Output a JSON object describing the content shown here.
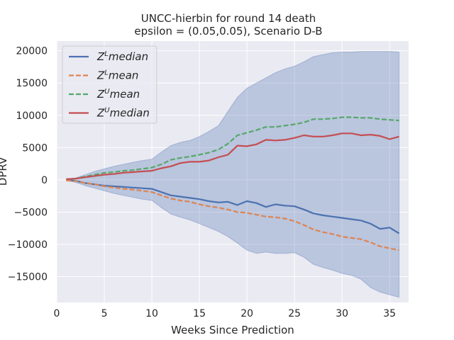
{
  "chart_data": {
    "type": "line",
    "title": "UNCC-hierbin for round 14 death",
    "subtitle": "epsilon = (0.05,0.05), Scenario D-B",
    "xlabel": "Weeks Since Prediction",
    "ylabel": "DPRV",
    "xlim": [
      0,
      37
    ],
    "ylim": [
      -19000,
      21500
    ],
    "xticks": [
      0,
      5,
      10,
      15,
      20,
      25,
      30,
      35
    ],
    "yticks": [
      -15000,
      -10000,
      -5000,
      0,
      5000,
      10000,
      15000,
      20000
    ],
    "grid": true,
    "background": "#eaeaf2",
    "legend_position": "top-left",
    "x": [
      1,
      2,
      3,
      4,
      5,
      6,
      7,
      8,
      9,
      10,
      11,
      12,
      13,
      14,
      15,
      16,
      17,
      18,
      19,
      20,
      21,
      22,
      23,
      24,
      25,
      26,
      27,
      28,
      29,
      30,
      31,
      32,
      33,
      34,
      35,
      36
    ],
    "band": {
      "color": "#4c72b0",
      "upper": [
        100,
        300,
        800,
        1300,
        1700,
        2100,
        2400,
        2700,
        3000,
        3200,
        4300,
        5300,
        5800,
        6100,
        6700,
        7500,
        8400,
        10600,
        12800,
        14200,
        15000,
        15800,
        16600,
        17200,
        17600,
        18300,
        19100,
        19400,
        19700,
        19800,
        19800,
        19900,
        19900,
        19900,
        19900,
        19800
      ],
      "lower": [
        -100,
        -400,
        -900,
        -1300,
        -1700,
        -2100,
        -2400,
        -2700,
        -3000,
        -3200,
        -4300,
        -5300,
        -5800,
        -6200,
        -6800,
        -7400,
        -8000,
        -8800,
        -9800,
        -10900,
        -11400,
        -11200,
        -11400,
        -11400,
        -11300,
        -12000,
        -13100,
        -13600,
        -14000,
        -14500,
        -14800,
        -15400,
        -16700,
        -17400,
        -17800,
        -18200
      ]
    },
    "series": [
      {
        "name": "Z^L median",
        "label_base": "Z",
        "label_sup": "L",
        "label_rest": "median",
        "color": "#4c72b0",
        "dash": "solid",
        "values": [
          0,
          -150,
          -500,
          -700,
          -900,
          -1000,
          -1100,
          -1200,
          -1300,
          -1400,
          -1900,
          -2400,
          -2600,
          -2800,
          -3000,
          -3300,
          -3500,
          -3400,
          -3900,
          -3300,
          -3600,
          -4200,
          -3800,
          -4000,
          -4100,
          -4600,
          -5200,
          -5500,
          -5700,
          -5900,
          -6100,
          -6300,
          -6800,
          -7600,
          -7400,
          -8300
        ]
      },
      {
        "name": "Z^L mean",
        "label_base": "Z",
        "label_sup": "L",
        "label_rest": "mean",
        "color": "#dd8452",
        "dash": "dashed",
        "values": [
          -100,
          -200,
          -500,
          -700,
          -1000,
          -1200,
          -1400,
          -1500,
          -1700,
          -1900,
          -2400,
          -2900,
          -3200,
          -3400,
          -3800,
          -4100,
          -4300,
          -4600,
          -5000,
          -5100,
          -5400,
          -5700,
          -5800,
          -6000,
          -6400,
          -7000,
          -7700,
          -8100,
          -8400,
          -8800,
          -9000,
          -9200,
          -9700,
          -10300,
          -10600,
          -10900
        ]
      },
      {
        "name": "Z^U mean",
        "label_base": "Z",
        "label_sup": "U",
        "label_rest": "mean",
        "color": "#55a868",
        "dash": "dashed",
        "values": [
          100,
          200,
          500,
          800,
          1100,
          1200,
          1400,
          1500,
          1700,
          1900,
          2400,
          3100,
          3400,
          3600,
          3900,
          4200,
          4700,
          5600,
          6900,
          7300,
          7700,
          8200,
          8200,
          8400,
          8600,
          8900,
          9400,
          9400,
          9500,
          9700,
          9700,
          9600,
          9600,
          9400,
          9300,
          9200
        ]
      },
      {
        "name": "Z^U median",
        "label_base": "Z",
        "label_sup": "U",
        "label_rest": "median",
        "color": "#c44e52",
        "dash": "solid",
        "values": [
          100,
          200,
          400,
          600,
          800,
          900,
          1100,
          1200,
          1300,
          1400,
          1800,
          2100,
          2600,
          2800,
          2800,
          3000,
          3500,
          3900,
          5300,
          5200,
          5500,
          6200,
          6100,
          6200,
          6500,
          6900,
          6700,
          6700,
          6900,
          7200,
          7200,
          6900,
          7000,
          6800,
          6300,
          6700
        ]
      }
    ]
  }
}
